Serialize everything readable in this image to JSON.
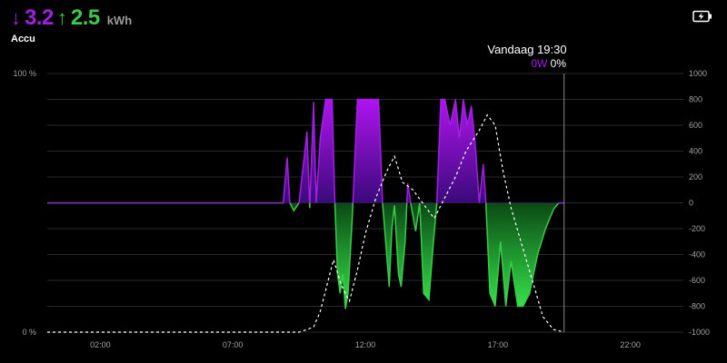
{
  "header": {
    "discharge_arrow": "↓",
    "discharge_value": "3.2",
    "charge_arrow": "↑",
    "charge_value": "2.5",
    "unit": "kWh",
    "subtitle": "Accu"
  },
  "battery_button": {
    "icon": "battery-charging-icon"
  },
  "tooltip": {
    "title": "Vandaag 19:30",
    "power": "0W",
    "soc": "0%"
  },
  "colors": {
    "discharge": "#a020e0",
    "charge": "#3acb4a",
    "soc_line": "#ffffff",
    "grid": "#2a2a2a"
  },
  "chart_data": {
    "type": "area",
    "x_ticks": [
      "02:00",
      "07:00",
      "12:00",
      "17:00",
      "22:00"
    ],
    "left_axis": {
      "ticks": [
        "100 %",
        "0 %"
      ],
      "ylim": [
        0,
        100
      ]
    },
    "right_axis": {
      "ticks": [
        "1000",
        "800",
        "600",
        "400",
        "200",
        "0",
        "-200",
        "-400",
        "-600",
        "-800",
        "-1000"
      ],
      "ylim": [
        -1000,
        1000
      ]
    },
    "power_series": {
      "x_hours": [
        0.0,
        8.9,
        9.05,
        9.15,
        9.3,
        9.5,
        9.8,
        9.9,
        10.05,
        10.15,
        10.3,
        10.5,
        10.75,
        10.85,
        10.95,
        11.05,
        11.15,
        11.25,
        11.35,
        11.5,
        11.7,
        11.85,
        12.0,
        12.2,
        12.5,
        12.65,
        12.9,
        13.0,
        13.1,
        13.25,
        13.35,
        13.5,
        13.6,
        13.75,
        13.9,
        14.05,
        14.2,
        14.4,
        14.55,
        14.7,
        14.85,
        15.0,
        15.2,
        15.4,
        15.55,
        15.7,
        15.85,
        16.0,
        16.15,
        16.3,
        16.45,
        16.55,
        16.7,
        16.9,
        17.1,
        17.3,
        17.5,
        17.75,
        17.95,
        18.2,
        18.5,
        18.8,
        19.1,
        19.3,
        19.5
      ],
      "values": [
        0,
        0,
        350,
        0,
        -60,
        0,
        550,
        -40,
        780,
        0,
        500,
        800,
        800,
        0,
        -550,
        -700,
        -550,
        -820,
        -700,
        -150,
        800,
        800,
        800,
        800,
        800,
        0,
        -650,
        -200,
        -20,
        -550,
        -650,
        -300,
        150,
        -50,
        -220,
        0,
        -700,
        -750,
        -350,
        0,
        800,
        800,
        600,
        800,
        500,
        800,
        600,
        750,
        450,
        0,
        300,
        0,
        -700,
        -800,
        -300,
        -800,
        -450,
        -800,
        -800,
        -700,
        -400,
        -200,
        -50,
        0,
        0
      ],
      "unit": "W"
    },
    "soc_series": {
      "x_hours": [
        0.0,
        9.5,
        9.8,
        10.05,
        10.3,
        10.8,
        11.1,
        11.4,
        11.7,
        12.0,
        12.4,
        12.8,
        13.1,
        13.4,
        13.8,
        14.3,
        14.6,
        15.0,
        15.4,
        15.8,
        16.3,
        16.6,
        16.9,
        17.2,
        17.5,
        17.9,
        18.3,
        18.7,
        19.1,
        19.5
      ],
      "values": [
        0,
        0,
        1,
        2,
        8,
        28,
        18,
        12,
        24,
        38,
        52,
        62,
        68,
        58,
        55,
        48,
        44,
        52,
        60,
        70,
        78,
        84,
        80,
        62,
        48,
        34,
        20,
        6,
        1,
        0
      ],
      "unit": "%"
    },
    "cursor_time": "19:30"
  }
}
